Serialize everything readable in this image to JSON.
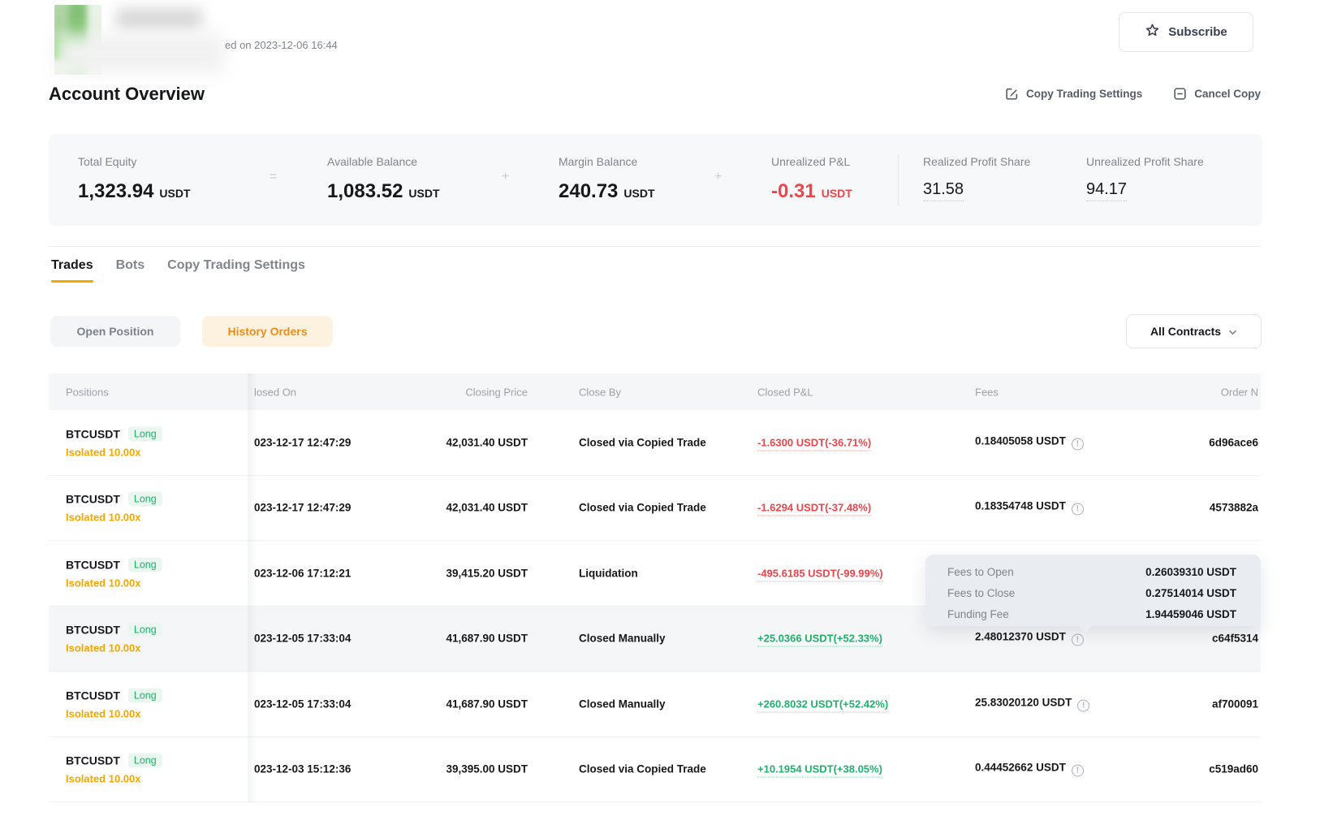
{
  "header": {
    "copied_on": "ed on 2023-12-06 16:44",
    "subscribe_label": "Subscribe"
  },
  "overview": {
    "title": "Account Overview",
    "copy_trading_settings_label": "Copy Trading Settings",
    "cancel_copy_label": "Cancel Copy",
    "stats": [
      {
        "label": "Total Equity",
        "value": "1,323.94",
        "unit": "USDT",
        "sep_after": "="
      },
      {
        "label": "Available Balance",
        "value": "1,083.52",
        "unit": "USDT",
        "sep_after": "+"
      },
      {
        "label": "Margin Balance",
        "value": "240.73",
        "unit": "USDT",
        "sep_after": "+"
      },
      {
        "label": "Unrealized P&L",
        "value": "-0.31",
        "unit": "USDT",
        "negative": true,
        "divider_after": true
      },
      {
        "label": "Realized Profit Share",
        "value": "31.58",
        "dotted": true
      },
      {
        "label": "Unrealized Profit Share",
        "value": "94.17",
        "dotted": true
      }
    ]
  },
  "tabs": [
    {
      "label": "Trades",
      "active": true
    },
    {
      "label": "Bots",
      "active": false
    },
    {
      "label": "Copy Trading Settings",
      "active": false
    }
  ],
  "filters": {
    "open_position": "Open Position",
    "history_orders": "History Orders",
    "contracts_dropdown": "All Contracts"
  },
  "table": {
    "columns": [
      "Positions",
      "losed On",
      "Closing Price",
      "Close By",
      "Closed P&L",
      "Fees",
      "Order N"
    ],
    "rows": [
      {
        "pair": "BTCUSDT",
        "side": "Long",
        "margin": "Isolated 10.00x",
        "closed_on": "023-12-17 12:47:29",
        "closing_price": "42,031.40 USDT",
        "close_by": "Closed via Copied Trade",
        "closed_pnl": "-1.6300 USDT(-36.71%)",
        "pnl_sign": "neg",
        "fees": "0.18405058 USDT",
        "order_no": "6d96ace6",
        "hovered": false
      },
      {
        "pair": "BTCUSDT",
        "side": "Long",
        "margin": "Isolated 10.00x",
        "closed_on": "023-12-17 12:47:29",
        "closing_price": "42,031.40 USDT",
        "close_by": "Closed via Copied Trade",
        "closed_pnl": "-1.6294 USDT(-37.48%)",
        "pnl_sign": "neg",
        "fees": "0.18354748 USDT",
        "order_no": "4573882a",
        "hovered": false
      },
      {
        "pair": "BTCUSDT",
        "side": "Long",
        "margin": "Isolated 10.00x",
        "closed_on": "023-12-06 17:12:21",
        "closing_price": "39,415.20 USDT",
        "close_by": "Liquidation",
        "closed_pnl": "-495.6185 USDT(-99.99%)",
        "pnl_sign": "neg",
        "fees": null,
        "order_no": null,
        "hovered": false
      },
      {
        "pair": "BTCUSDT",
        "side": "Long",
        "margin": "Isolated 10.00x",
        "closed_on": "023-12-05 17:33:04",
        "closing_price": "41,687.90 USDT",
        "close_by": "Closed Manually",
        "closed_pnl": "+25.0366 USDT(+52.33%)",
        "pnl_sign": "pos",
        "fees": "2.48012370 USDT",
        "order_no": "c64f5314",
        "hovered": true
      },
      {
        "pair": "BTCUSDT",
        "side": "Long",
        "margin": "Isolated 10.00x",
        "closed_on": "023-12-05 17:33:04",
        "closing_price": "41,687.90 USDT",
        "close_by": "Closed Manually",
        "closed_pnl": "+260.8032 USDT(+52.42%)",
        "pnl_sign": "pos",
        "fees": "25.83020120 USDT",
        "order_no": "af700091",
        "hovered": false
      },
      {
        "pair": "BTCUSDT",
        "side": "Long",
        "margin": "Isolated 10.00x",
        "closed_on": "023-12-03 15:12:36",
        "closing_price": "39,395.00 USDT",
        "close_by": "Closed via Copied Trade",
        "closed_pnl": "+10.1954 USDT(+38.05%)",
        "pnl_sign": "pos",
        "fees": "0.44452662 USDT",
        "order_no": "c519ad60",
        "hovered": false
      }
    ]
  },
  "tooltip": {
    "rows": [
      {
        "label": "Fees to Open",
        "value": "0.26039310 USDT"
      },
      {
        "label": "Fees to Close",
        "value": "0.27514014 USDT"
      },
      {
        "label": "Funding Fee",
        "value": "1.94459046 USDT"
      }
    ]
  },
  "colors": {
    "accent_orange": "#f7a600",
    "history_orders_orange": "#ee8c1c",
    "loss_red": "#ef454a",
    "profit_green": "#20b26c",
    "panel_gray": "#f7f8fa",
    "tooltip_gray": "#e9edf2"
  }
}
